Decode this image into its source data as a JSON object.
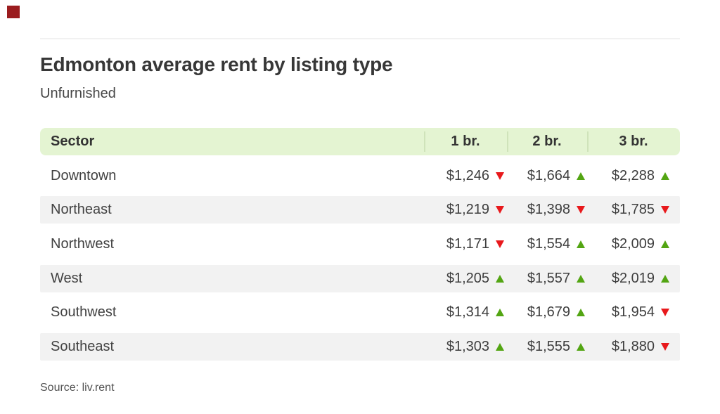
{
  "page": {
    "title": "Edmonton average rent by listing type",
    "subtitle": "Unfurnished",
    "source": "Source: liv.rent"
  },
  "table": {
    "header": {
      "sector": "Sector",
      "columns": [
        "1 br.",
        "2 br.",
        "3 br."
      ]
    },
    "rows": [
      {
        "sector": "Downtown",
        "values": [
          {
            "price": "$1,246",
            "trend": "down"
          },
          {
            "price": "$1,664",
            "trend": "up"
          },
          {
            "price": "$2,288",
            "trend": "up"
          }
        ]
      },
      {
        "sector": "Northeast",
        "values": [
          {
            "price": "$1,219",
            "trend": "down"
          },
          {
            "price": "$1,398",
            "trend": "down"
          },
          {
            "price": "$1,785",
            "trend": "down"
          }
        ]
      },
      {
        "sector": "Northwest",
        "values": [
          {
            "price": "$1,171",
            "trend": "down"
          },
          {
            "price": "$1,554",
            "trend": "up"
          },
          {
            "price": "$2,009",
            "trend": "up"
          }
        ]
      },
      {
        "sector": "West",
        "values": [
          {
            "price": "$1,205",
            "trend": "up"
          },
          {
            "price": "$1,557",
            "trend": "up"
          },
          {
            "price": "$2,019",
            "trend": "up"
          }
        ]
      },
      {
        "sector": "Southwest",
        "values": [
          {
            "price": "$1,314",
            "trend": "up"
          },
          {
            "price": "$1,679",
            "trend": "up"
          },
          {
            "price": "$1,954",
            "trend": "down"
          }
        ]
      },
      {
        "sector": "Southeast",
        "values": [
          {
            "price": "$1,303",
            "trend": "up"
          },
          {
            "price": "$1,555",
            "trend": "up"
          },
          {
            "price": "$1,880",
            "trend": "down"
          }
        ]
      }
    ]
  },
  "colors": {
    "header_green": "#e4f4d2",
    "stripe_gray": "#f2f2f2",
    "trend_up_green": "#53a513",
    "trend_down_red": "#e8191c",
    "brand_red": "#9b1c1f"
  },
  "chart_data": {
    "type": "table",
    "title": "Edmonton average rent by listing type",
    "subtitle": "Unfurnished",
    "columns": [
      "Sector",
      "1 br.",
      "2 br.",
      "3 br."
    ],
    "rows": [
      [
        "Downtown",
        1246,
        1664,
        2288
      ],
      [
        "Northeast",
        1219,
        1398,
        1785
      ],
      [
        "Northwest",
        1171,
        1554,
        2009
      ],
      [
        "West",
        1205,
        1557,
        2019
      ],
      [
        "Southwest",
        1314,
        1679,
        1954
      ],
      [
        "Southeast",
        1303,
        1555,
        1880
      ]
    ],
    "trends": [
      [
        "down",
        "up",
        "up"
      ],
      [
        "down",
        "down",
        "down"
      ],
      [
        "down",
        "up",
        "up"
      ],
      [
        "up",
        "up",
        "up"
      ],
      [
        "up",
        "up",
        "down"
      ],
      [
        "up",
        "up",
        "down"
      ]
    ],
    "source": "Source: liv.rent"
  }
}
